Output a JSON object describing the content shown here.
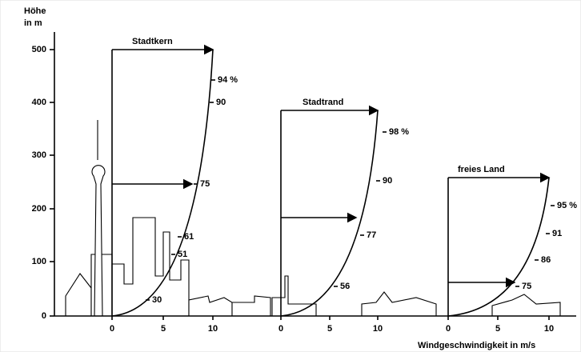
{
  "axis": {
    "title_line1": "Höhe",
    "title_line2": "in m",
    "ticks": [
      500,
      400,
      300,
      200,
      100,
      0
    ],
    "x_title": "Windgeschwindigkeit in m/s"
  },
  "profiles": [
    {
      "title": "Stadtkern",
      "x_ticks": [
        0,
        5,
        10
      ],
      "labels": [
        "94 %",
        "90",
        "75",
        "61",
        "51",
        "30"
      ]
    },
    {
      "title": "Stadtrand",
      "x_ticks": [
        0,
        5,
        10
      ],
      "labels": [
        "98 %",
        "90",
        "77",
        "56"
      ]
    },
    {
      "title": "freies Land",
      "x_ticks": [
        0,
        5,
        10
      ],
      "labels": [
        "95 %",
        "91",
        "86",
        "75"
      ]
    }
  ]
}
